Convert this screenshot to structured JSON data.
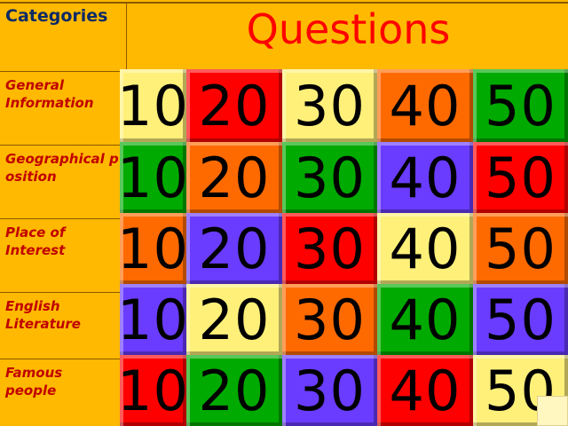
{
  "header": {
    "categories_label": "Categories",
    "title": "Questions"
  },
  "categories": [
    "General Information",
    "Geographical position",
    "Place of Interest",
    "English Literature",
    "Famous people"
  ],
  "colors": {
    "yellow": "#fff07a",
    "red": "#ff0000",
    "orange": "#ff6a00",
    "green": "#00aa00",
    "purple": "#6a3cff",
    "background": "#ffb900"
  },
  "board": [
    [
      {
        "v": "10",
        "c": "yellow"
      },
      {
        "v": "20",
        "c": "red"
      },
      {
        "v": "30",
        "c": "yellow"
      },
      {
        "v": "40",
        "c": "orange"
      },
      {
        "v": "50",
        "c": "green"
      }
    ],
    [
      {
        "v": "10",
        "c": "green"
      },
      {
        "v": "20",
        "c": "orange"
      },
      {
        "v": "30",
        "c": "green"
      },
      {
        "v": "40",
        "c": "purple"
      },
      {
        "v": "50",
        "c": "red"
      }
    ],
    [
      {
        "v": "10",
        "c": "orange"
      },
      {
        "v": "20",
        "c": "purple"
      },
      {
        "v": "30",
        "c": "red"
      },
      {
        "v": "40",
        "c": "yellow"
      },
      {
        "v": "50",
        "c": "orange"
      }
    ],
    [
      {
        "v": "10",
        "c": "purple"
      },
      {
        "v": "20",
        "c": "yellow"
      },
      {
        "v": "30",
        "c": "orange"
      },
      {
        "v": "40",
        "c": "green"
      },
      {
        "v": "50",
        "c": "purple"
      }
    ],
    [
      {
        "v": "10",
        "c": "red"
      },
      {
        "v": "20",
        "c": "green"
      },
      {
        "v": "30",
        "c": "purple"
      },
      {
        "v": "40",
        "c": "red"
      },
      {
        "v": "50",
        "c": "yellow"
      }
    ]
  ]
}
